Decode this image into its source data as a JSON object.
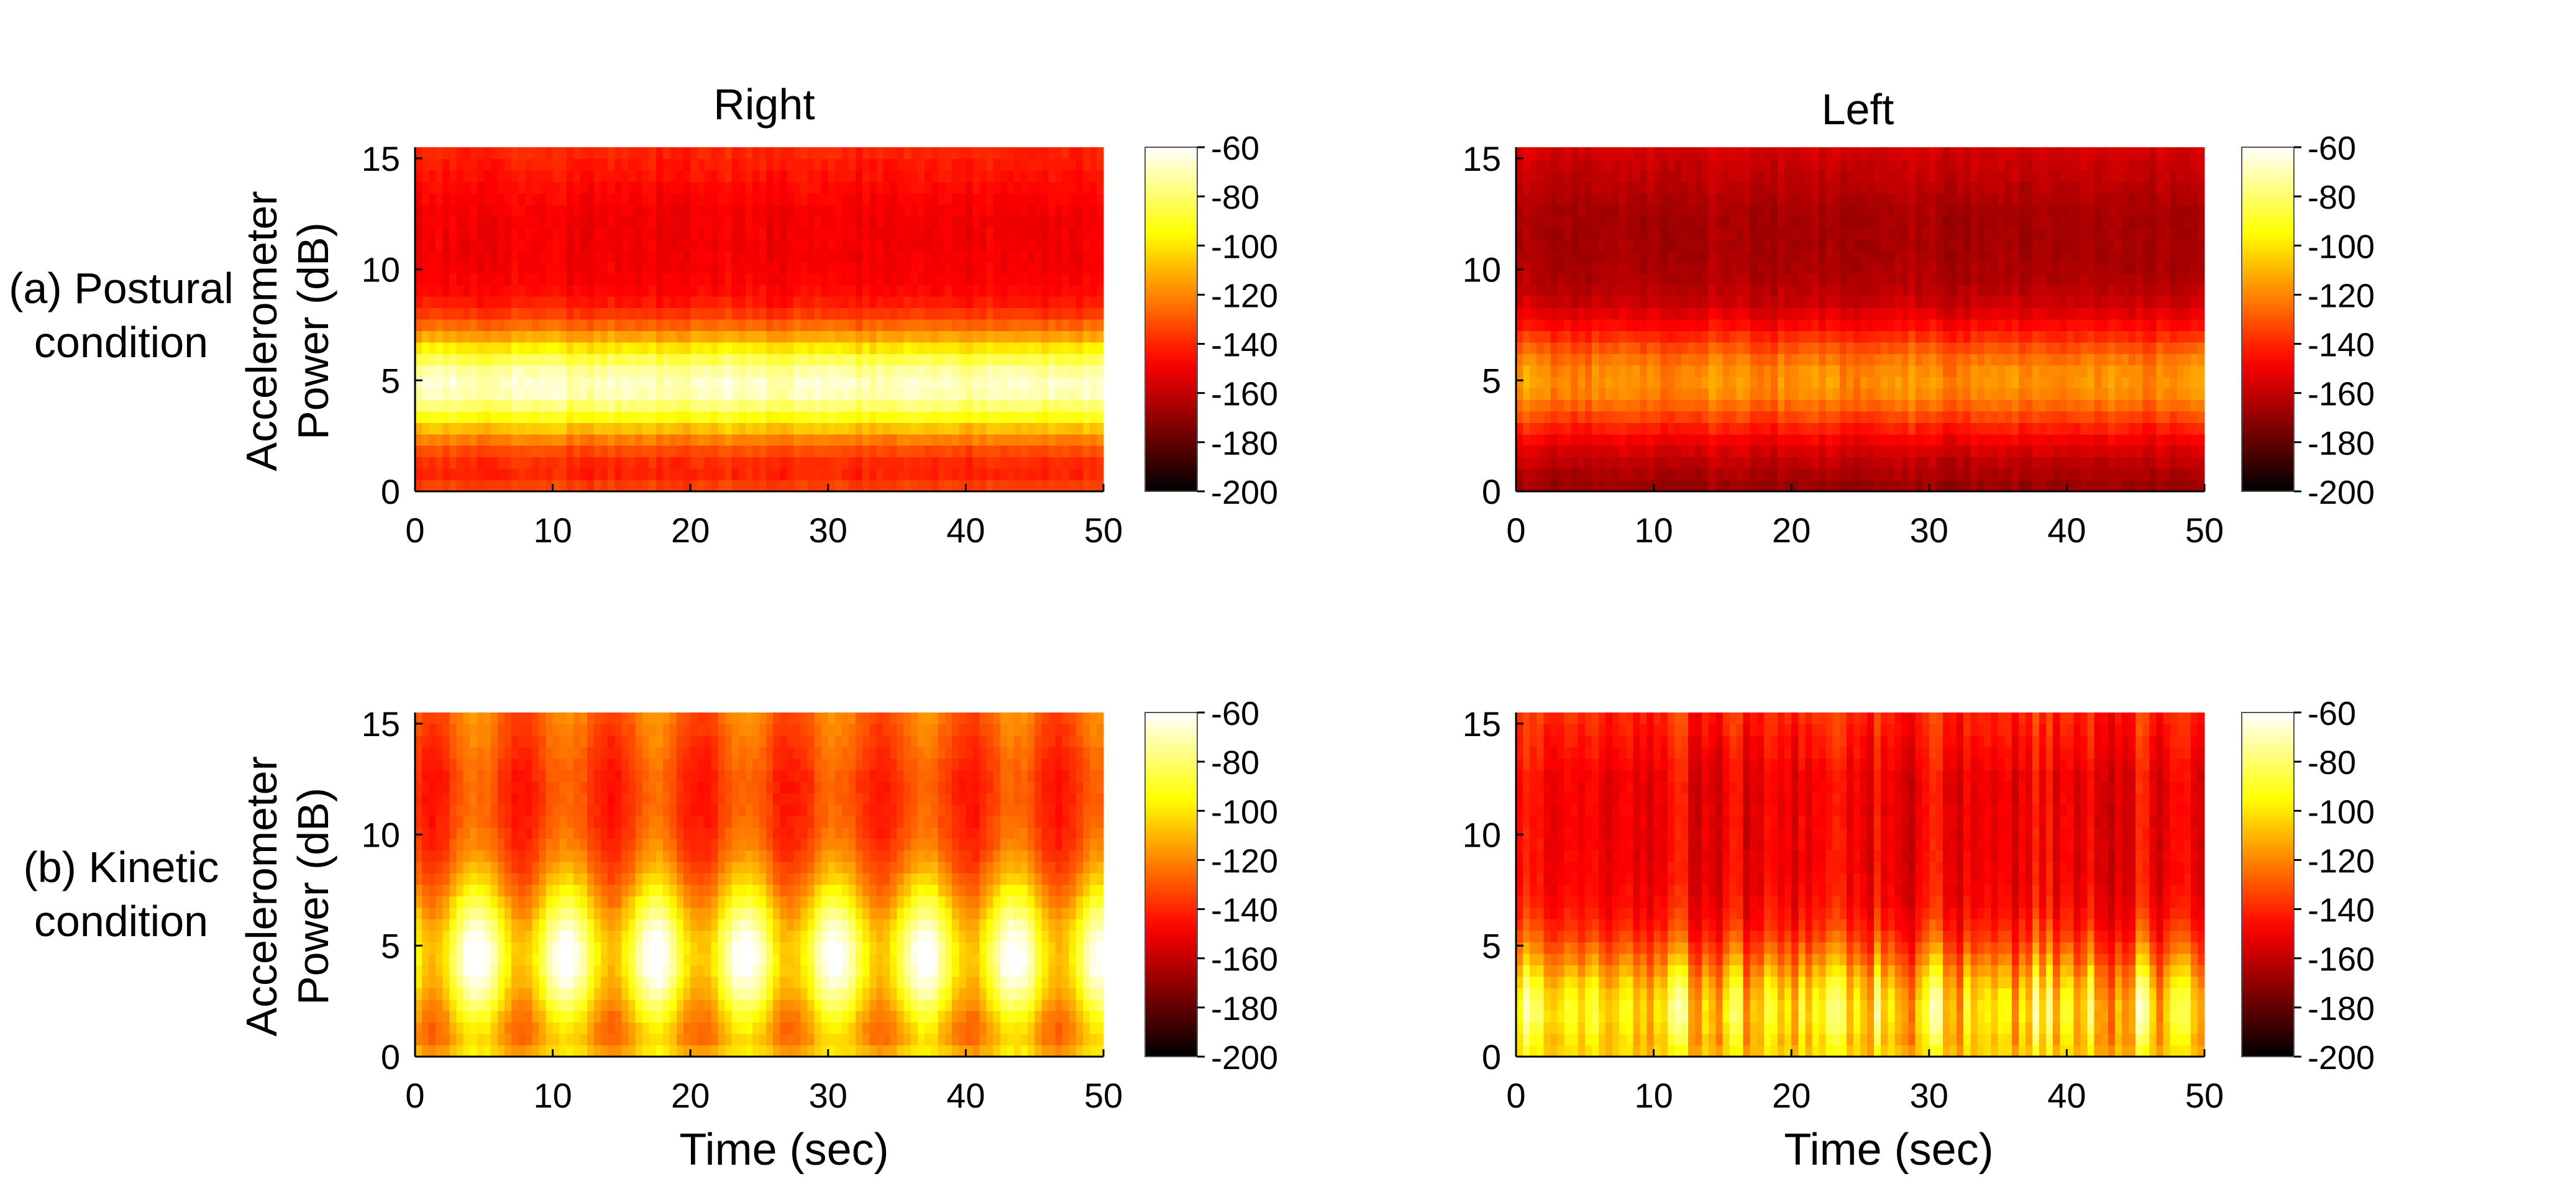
{
  "figure": {
    "row_labels": [
      [
        "(a) Postural",
        "condition"
      ],
      [
        "(b) Kinetic",
        "condition"
      ]
    ],
    "column_titles": [
      "Right",
      "Left"
    ],
    "ylabel": [
      "Accelerometer",
      "Power (dB)"
    ],
    "xlabel": "Time (sec)"
  },
  "chart_data": [
    {
      "type": "heatmap",
      "panel": "(a) Postural condition - Right",
      "title": "Right",
      "xlabel": "",
      "ylabel": "Accelerometer Power (dB)",
      "xlim": [
        0,
        50
      ],
      "ylim": [
        0,
        15.5
      ],
      "xticks": [
        0,
        10,
        20,
        30,
        40,
        50
      ],
      "yticks": [
        0,
        5,
        10,
        15
      ],
      "colorbar": {
        "min": -200,
        "max": -60,
        "ticks": [
          -60,
          -80,
          -100,
          -120,
          -140,
          -160,
          -180,
          -200
        ],
        "colormap": "hot"
      },
      "pattern": {
        "peak_freq": 4.8,
        "peak_db": -68,
        "bandwidth": 2.4,
        "background_db": -150,
        "modulation": "steady",
        "mod_depth": 6,
        "low_freq_db": -128
      }
    },
    {
      "type": "heatmap",
      "panel": "(a) Postural condition - Left",
      "title": "Left",
      "xlabel": "",
      "ylabel": "",
      "xlim": [
        0,
        50
      ],
      "ylim": [
        0,
        15.5
      ],
      "xticks": [
        0,
        10,
        20,
        30,
        40,
        50
      ],
      "yticks": [
        0,
        5,
        10,
        15
      ],
      "colorbar": {
        "min": -200,
        "max": -60,
        "ticks": [
          -60,
          -80,
          -100,
          -120,
          -140,
          -160,
          -180,
          -200
        ],
        "colormap": "hot"
      },
      "pattern": {
        "peak_freq": 5.0,
        "peak_db": -118,
        "bandwidth": 2.6,
        "background_db": -166,
        "modulation": "steady",
        "mod_depth": 8,
        "low_freq_db": -170
      }
    },
    {
      "type": "heatmap",
      "panel": "(b) Kinetic condition - Right",
      "title": "",
      "xlabel": "Time (sec)",
      "ylabel": "Accelerometer Power (dB)",
      "xlim": [
        0,
        50
      ],
      "ylim": [
        0,
        15.5
      ],
      "xticks": [
        0,
        10,
        20,
        30,
        40,
        50
      ],
      "yticks": [
        0,
        5,
        10,
        15
      ],
      "colorbar": {
        "min": -200,
        "max": -60,
        "ticks": [
          -60,
          -80,
          -100,
          -120,
          -140,
          -160,
          -180,
          -200
        ],
        "colormap": "hot"
      },
      "pattern": {
        "peak_freq": 4.5,
        "peak_db": -72,
        "bandwidth": 3.4,
        "background_db": -132,
        "modulation": "periodic",
        "period": 6.5,
        "mod_depth": 26,
        "low_freq_db": -95
      }
    },
    {
      "type": "heatmap",
      "panel": "(b) Kinetic condition - Left",
      "title": "",
      "xlabel": "Time (sec)",
      "ylabel": "",
      "xlim": [
        0,
        50
      ],
      "ylim": [
        0,
        15.5
      ],
      "xticks": [
        0,
        10,
        20,
        30,
        40,
        50
      ],
      "yticks": [
        0,
        5,
        10,
        15
      ],
      "colorbar": {
        "min": -200,
        "max": -60,
        "ticks": [
          -60,
          -80,
          -100,
          -120,
          -140,
          -160,
          -180,
          -200
        ],
        "colormap": "hot"
      },
      "pattern": {
        "peak_freq": 2.0,
        "peak_db": -98,
        "bandwidth": 3.0,
        "background_db": -150,
        "modulation": "irregular",
        "mod_depth": 22,
        "low_freq_db": -100
      }
    }
  ]
}
